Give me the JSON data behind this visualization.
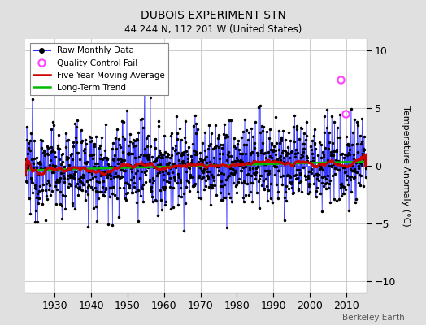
{
  "title": "DUBOIS EXPERIMENT STN",
  "subtitle": "44.244 N, 112.201 W (United States)",
  "ylabel": "Temperature Anomaly (°C)",
  "watermark": "Berkeley Earth",
  "ylim": [
    -11,
    11
  ],
  "yticks": [
    -10,
    -5,
    0,
    5,
    10
  ],
  "xstart": 1922,
  "xend": 2015.5,
  "xticks": [
    1930,
    1940,
    1950,
    1960,
    1970,
    1980,
    1990,
    2000,
    2010
  ],
  "bg_color": "#e0e0e0",
  "plot_bg_color": "#ffffff",
  "line_color_raw": "#3333ff",
  "line_color_avg": "#cc0000",
  "line_color_trend": "#00bb00",
  "qc_fail_color": "#ff44ff",
  "seed": 12345,
  "anomaly_std": 1.9,
  "trend_slope": 0.008,
  "qc_fail_points": [
    [
      2008.5,
      7.5
    ],
    [
      2009.8,
      4.5
    ]
  ],
  "grid_color": "#cccccc"
}
